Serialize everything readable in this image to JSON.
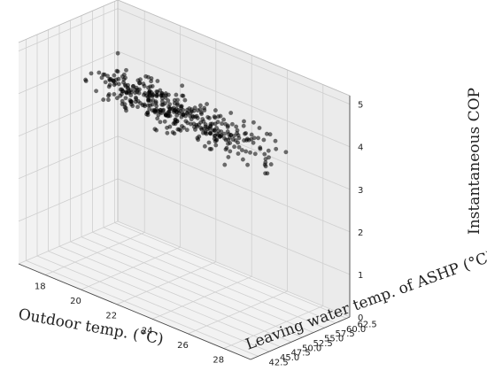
{
  "chart_data": {
    "type": "scatter",
    "projection": "3d",
    "title": "",
    "xlabel": "Outdoor temp. (°C)",
    "ylabel": "Leaving water temp. of ASHP (°C)",
    "zlabel": "Instantaneous  COP",
    "x_ticks": [
      "18",
      "20",
      "22",
      "24",
      "26",
      "28"
    ],
    "y_ticks": [
      "42.5",
      "45.0",
      "47.5",
      "50.0",
      "52.5",
      "55.0",
      "57.5",
      "60.0",
      "62.5"
    ],
    "z_ticks": [
      "0",
      "1",
      "2",
      "3",
      "4",
      "5"
    ],
    "xlim": [
      16.5,
      29.5
    ],
    "ylim": [
      40.8,
      63.2
    ],
    "zlim": [
      0,
      5.2
    ],
    "grid": true,
    "marker_color": "#000000",
    "marker_alpha": 0.55,
    "approximate_point_count": 400,
    "trend_note_values": {
      "cop_at_high_outdoor_low_water": 4.6,
      "cop_at_low_outdoor_high_water": 3.6
    }
  }
}
